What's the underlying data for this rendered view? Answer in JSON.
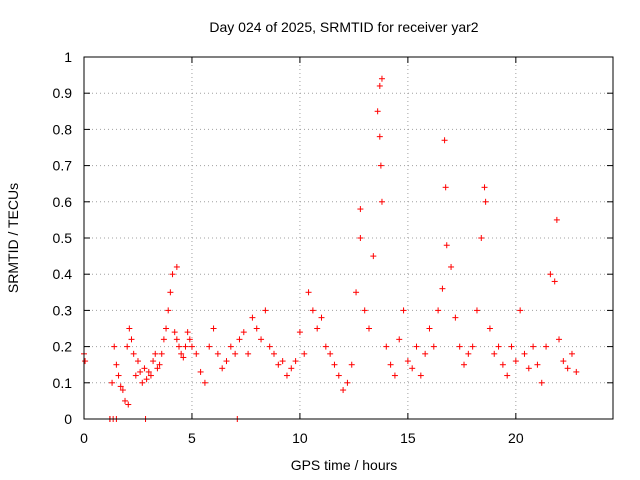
{
  "chart_data": {
    "type": "scatter",
    "title": "Day 024 of 2025, SRMTID for receiver yar2",
    "xlabel": "GPS time / hours",
    "ylabel": "SRMTID / TECUs",
    "xlim": [
      0,
      24.5
    ],
    "ylim": [
      0,
      1
    ],
    "xticks": [
      0,
      5,
      10,
      15,
      20
    ],
    "xtick_labels": [
      "0",
      "5",
      "10",
      "15",
      "20"
    ],
    "yticks": [
      0,
      0.1,
      0.2,
      0.3,
      0.4,
      0.5,
      0.6,
      0.7,
      0.8,
      0.9,
      1
    ],
    "ytick_labels": [
      "0",
      "0.1",
      "0.2",
      "0.3",
      "0.4",
      "0.5",
      "0.6",
      "0.7",
      "0.8",
      "0.9",
      "1"
    ],
    "grid": true,
    "marker": "+",
    "color": "#ff0000",
    "series": [
      {
        "name": "SRMTID",
        "x": [
          0.0,
          0.05,
          1.2,
          1.3,
          1.4,
          1.5,
          1.6,
          1.7,
          1.8,
          1.9,
          2.0,
          2.1,
          2.2,
          2.3,
          2.4,
          2.5,
          2.6,
          2.7,
          2.8,
          2.9,
          3.0,
          3.1,
          3.2,
          3.3,
          3.4,
          3.5,
          3.6,
          3.7,
          3.8,
          3.9,
          4.0,
          4.1,
          4.2,
          4.3,
          4.4,
          4.5,
          4.6,
          4.7,
          4.8,
          4.9,
          5.0,
          5.2,
          5.4,
          5.6,
          5.8,
          6.0,
          6.2,
          6.4,
          6.6,
          6.8,
          7.0,
          7.2,
          7.4,
          7.6,
          7.8,
          8.0,
          8.2,
          8.4,
          8.6,
          8.8,
          9.0,
          9.2,
          9.4,
          9.6,
          9.8,
          10.0,
          10.2,
          10.4,
          10.6,
          10.8,
          11.0,
          11.2,
          11.4,
          11.6,
          11.8,
          12.0,
          12.2,
          12.4,
          12.6,
          12.8,
          13.0,
          13.2,
          13.4,
          13.6,
          13.7,
          13.8,
          14.0,
          14.2,
          14.4,
          14.6,
          14.8,
          15.0,
          15.2,
          15.4,
          15.6,
          15.8,
          16.0,
          16.2,
          16.4,
          16.6,
          16.8,
          17.0,
          17.2,
          17.4,
          17.6,
          17.8,
          18.0,
          18.2,
          18.4,
          18.6,
          18.8,
          19.0,
          19.2,
          19.4,
          19.6,
          19.8,
          20.0,
          20.2,
          20.4,
          20.6,
          20.8,
          21.0,
          21.2,
          21.4,
          21.6,
          21.8,
          22.0,
          22.2,
          22.4,
          22.6,
          22.8,
          1.2,
          1.35,
          1.5,
          2.85,
          7.1,
          2.05,
          4.3,
          13.7,
          13.75,
          13.8,
          12.8,
          16.7,
          16.75,
          18.55,
          21.9
        ],
        "y": [
          0.18,
          0.16,
          0.0,
          0.1,
          0.2,
          0.15,
          0.12,
          0.09,
          0.08,
          0.05,
          0.2,
          0.25,
          0.22,
          0.18,
          0.12,
          0.16,
          0.13,
          0.1,
          0.14,
          0.11,
          0.13,
          0.12,
          0.16,
          0.18,
          0.14,
          0.15,
          0.18,
          0.22,
          0.25,
          0.3,
          0.35,
          0.4,
          0.24,
          0.22,
          0.2,
          0.18,
          0.17,
          0.2,
          0.24,
          0.22,
          0.2,
          0.18,
          0.13,
          0.1,
          0.2,
          0.25,
          0.18,
          0.14,
          0.16,
          0.2,
          0.18,
          0.22,
          0.24,
          0.18,
          0.28,
          0.25,
          0.22,
          0.3,
          0.2,
          0.18,
          0.15,
          0.16,
          0.12,
          0.14,
          0.16,
          0.24,
          0.18,
          0.35,
          0.3,
          0.25,
          0.28,
          0.2,
          0.18,
          0.15,
          0.12,
          0.08,
          0.1,
          0.15,
          0.35,
          0.5,
          0.3,
          0.25,
          0.45,
          0.85,
          0.92,
          0.6,
          0.2,
          0.15,
          0.12,
          0.22,
          0.3,
          0.16,
          0.14,
          0.2,
          0.12,
          0.18,
          0.25,
          0.2,
          0.3,
          0.36,
          0.48,
          0.42,
          0.28,
          0.2,
          0.15,
          0.18,
          0.2,
          0.3,
          0.5,
          0.6,
          0.25,
          0.18,
          0.2,
          0.15,
          0.12,
          0.2,
          0.16,
          0.3,
          0.18,
          0.14,
          0.2,
          0.15,
          0.1,
          0.2,
          0.4,
          0.38,
          0.22,
          0.16,
          0.14,
          0.18,
          0.13,
          0.0,
          0.0,
          0.0,
          0.0,
          0.0,
          0.04,
          0.42,
          0.78,
          0.7,
          0.94,
          0.58,
          0.77,
          0.64,
          0.64,
          0.55
        ]
      }
    ]
  }
}
